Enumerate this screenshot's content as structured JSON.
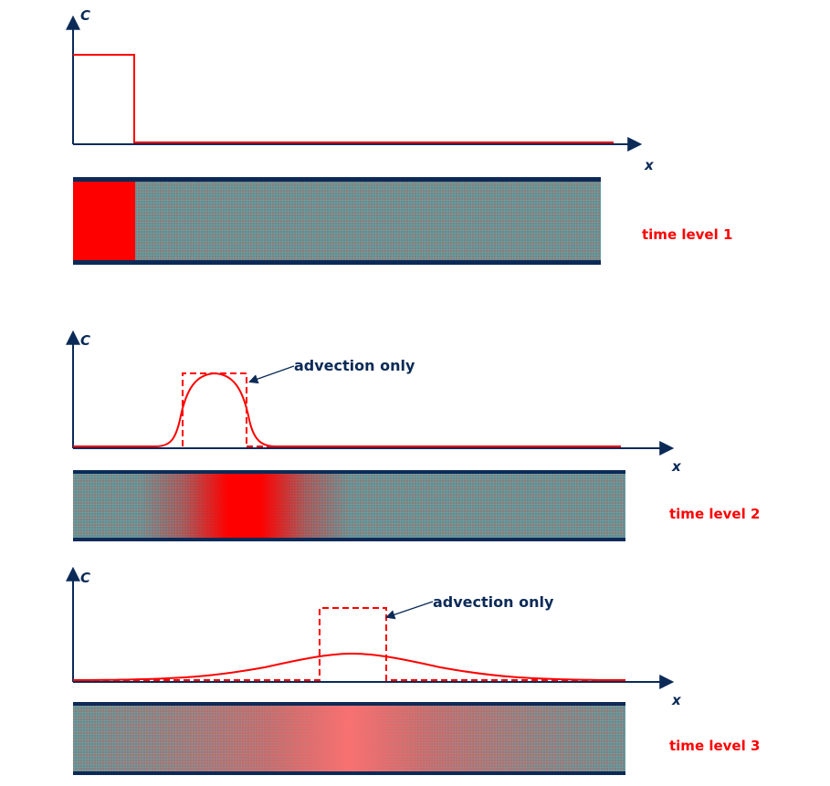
{
  "panels": [
    {
      "y_label": "C",
      "x_label": "x",
      "time_label": "time level 1",
      "annotation": ""
    },
    {
      "y_label": "C",
      "x_label": "x",
      "time_label": "time level 2",
      "annotation": "advection only"
    },
    {
      "y_label": "C",
      "x_label": "x",
      "time_label": "time level 3",
      "annotation": "advection only"
    }
  ],
  "colors": {
    "axis": "#0b2a57",
    "curve": "#ff0000",
    "label": "#ff0000",
    "pipe_wall": "#0b2a57",
    "pipe_fill_base": "#8a7a74",
    "pipe_grid": "#3fb4c8"
  }
}
